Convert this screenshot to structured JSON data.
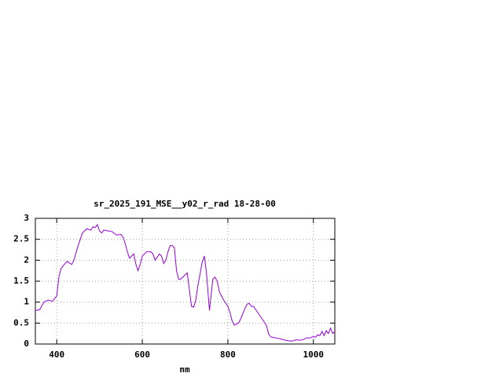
{
  "chart_data": {
    "type": "line",
    "title": "sr_2025_191_MSE__y02_r_rad 18-28-00",
    "x_label": "nm",
    "x": [
      350,
      360,
      370,
      380,
      390,
      400,
      405,
      410,
      420,
      425,
      430,
      435,
      440,
      450,
      460,
      470,
      480,
      485,
      490,
      495,
      500,
      505,
      510,
      520,
      530,
      540,
      550,
      555,
      560,
      565,
      570,
      575,
      580,
      585,
      590,
      595,
      600,
      610,
      620,
      625,
      630,
      640,
      645,
      650,
      655,
      660,
      665,
      670,
      675,
      680,
      685,
      690,
      700,
      705,
      710,
      715,
      720,
      725,
      730,
      740,
      745,
      750,
      755,
      757,
      760,
      765,
      770,
      775,
      780,
      790,
      800,
      805,
      810,
      815,
      825,
      830,
      840,
      845,
      850,
      855,
      860,
      870,
      880,
      890,
      895,
      900,
      910,
      920,
      930,
      940,
      950,
      960,
      970,
      980,
      985,
      990,
      1000,
      1005,
      1010,
      1015,
      1020,
      1025,
      1030,
      1035,
      1040,
      1045,
      1050
    ],
    "series": [
      {
        "color": "#9400d3",
        "values": [
          0.8,
          0.82,
          1.0,
          1.05,
          1.02,
          1.15,
          1.6,
          1.8,
          1.93,
          1.97,
          1.93,
          1.9,
          2.0,
          2.35,
          2.65,
          2.75,
          2.72,
          2.8,
          2.78,
          2.85,
          2.7,
          2.65,
          2.72,
          2.7,
          2.68,
          2.6,
          2.62,
          2.55,
          2.4,
          2.2,
          2.05,
          2.1,
          2.15,
          1.9,
          1.75,
          1.9,
          2.1,
          2.2,
          2.2,
          2.15,
          2.0,
          2.15,
          2.1,
          1.92,
          2.0,
          2.2,
          2.35,
          2.35,
          2.3,
          1.75,
          1.55,
          1.55,
          1.65,
          1.7,
          1.3,
          0.9,
          0.88,
          1.05,
          1.4,
          1.95,
          2.1,
          1.7,
          1.05,
          0.8,
          1.1,
          1.55,
          1.6,
          1.5,
          1.25,
          1.05,
          0.9,
          0.75,
          0.55,
          0.45,
          0.5,
          0.6,
          0.85,
          0.95,
          0.97,
          0.9,
          0.9,
          0.75,
          0.6,
          0.45,
          0.25,
          0.17,
          0.15,
          0.13,
          0.1,
          0.08,
          0.07,
          0.1,
          0.09,
          0.12,
          0.15,
          0.14,
          0.18,
          0.16,
          0.22,
          0.2,
          0.3,
          0.2,
          0.32,
          0.25,
          0.38,
          0.25,
          0.3
        ]
      }
    ],
    "xlim": [
      350,
      1050
    ],
    "xticks": [
      400,
      600,
      800,
      1000
    ],
    "ylim": [
      0,
      3
    ],
    "yticks": [
      0,
      0.5,
      1,
      1.5,
      2,
      2.5,
      3
    ],
    "grid": true
  }
}
